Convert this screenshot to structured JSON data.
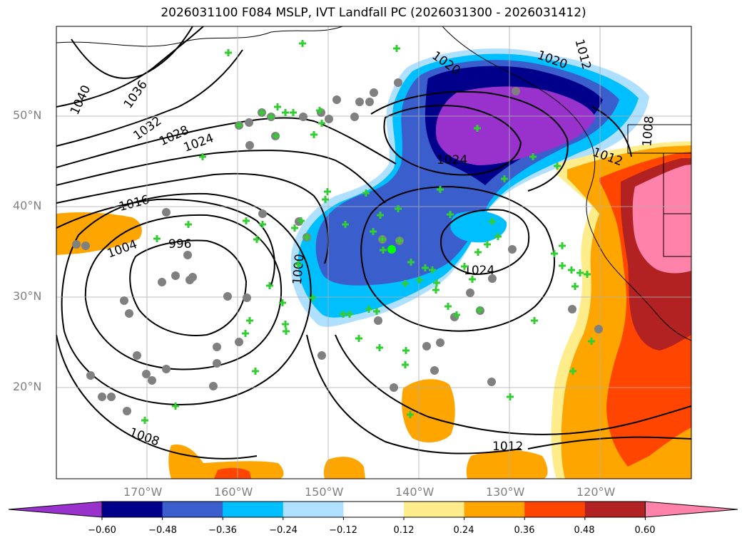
{
  "title": "2026031100 F084 MSLP, IVT Landfall PC (2026031300 - 2026031412)",
  "map": {
    "projection": "lat-lon",
    "lon_range": [
      -180,
      -110
    ],
    "lat_range": [
      10,
      60
    ],
    "grid": true,
    "lat_labels": [
      "50°N",
      "40°N",
      "30°N",
      "20°N"
    ],
    "lon_labels": [
      "170°W",
      "160°W",
      "150°W",
      "140°W",
      "130°W",
      "120°W"
    ],
    "isobar_labels": [
      "1040",
      "1036",
      "1032",
      "1028",
      "1024",
      "1016",
      "1004",
      "996",
      "1000",
      "1020",
      "1020",
      "1024",
      "1024",
      "1012",
      "1008",
      "1012",
      "1008",
      "1012"
    ]
  },
  "colorbar": {
    "tick_labels": [
      "−0.60",
      "−0.48",
      "−0.36",
      "−0.24",
      "−0.12",
      "0.12",
      "0.24",
      "0.36",
      "0.48",
      "0.60"
    ],
    "colors": [
      "#9932cc",
      "#00008b",
      "#3a5fcd",
      "#00bfff",
      "#b0e0ff",
      "#ffffff",
      "#ffec8b",
      "#ffa500",
      "#ff4500",
      "#b22222",
      "#ff82ab"
    ]
  }
}
